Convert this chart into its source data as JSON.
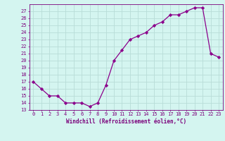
{
  "x": [
    0,
    1,
    2,
    3,
    4,
    5,
    6,
    7,
    8,
    9,
    10,
    11,
    12,
    13,
    14,
    15,
    16,
    17,
    18,
    19,
    20,
    21,
    22,
    23
  ],
  "y": [
    17,
    16,
    15,
    15,
    14,
    14,
    14,
    13.5,
    14,
    16.5,
    20,
    21.5,
    23,
    23.5,
    24,
    25,
    25.5,
    26.5,
    26.5,
    27,
    27.5,
    27.5,
    21,
    20.5
  ],
  "xlabel": "Windchill (Refroidissement éolien,°C)",
  "yticks": [
    13,
    14,
    15,
    16,
    17,
    18,
    19,
    20,
    21,
    22,
    23,
    24,
    25,
    26,
    27
  ],
  "xticks": [
    0,
    1,
    2,
    3,
    4,
    5,
    6,
    7,
    8,
    9,
    10,
    11,
    12,
    13,
    14,
    15,
    16,
    17,
    18,
    19,
    20,
    21,
    22,
    23
  ],
  "line_color": "#8B008B",
  "marker": "D",
  "marker_size": 2.2,
  "bg_color": "#d4f5f0",
  "grid_color": "#b8ddd8",
  "font_color": "#7B007B",
  "ylim_min": 13,
  "ylim_max": 28
}
